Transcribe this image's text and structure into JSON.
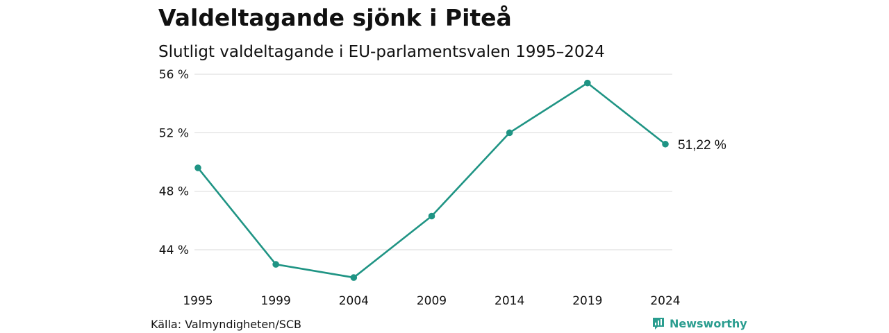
{
  "title": "Valdeltagande sjönk i Piteå",
  "subtitle": "Slutligt valdeltagande i EU-parlamentsvalen 1995–2024",
  "source": "Källa: Valmyndigheten/SCB",
  "brand": {
    "name": "Newsworthy",
    "icon": "newsworthy-logo-icon"
  },
  "colors": {
    "line": "#1f9484",
    "grid": "#d9d9d9",
    "text": "#111111"
  },
  "chart_data": {
    "type": "line",
    "x": [
      "1995",
      "1999",
      "2004",
      "2009",
      "2014",
      "2019",
      "2024"
    ],
    "series": [
      {
        "values": [
          49.6,
          43.0,
          42.1,
          46.3,
          52.0,
          55.4,
          51.22
        ]
      }
    ],
    "yticks": [
      44,
      48,
      52,
      56
    ],
    "ytick_labels": [
      "44 %",
      "48 %",
      "52 %",
      "56 %"
    ],
    "ylim": [
      41.5,
      56.4
    ],
    "grid": true,
    "end_label": "51,22 %"
  }
}
